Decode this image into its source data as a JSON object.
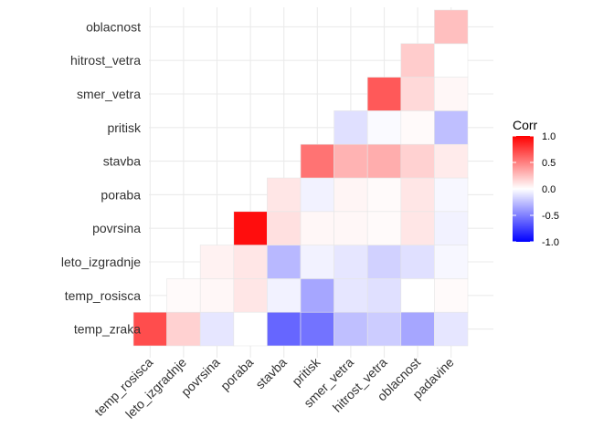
{
  "chart_data": {
    "type": "heatmap",
    "title": "",
    "xlabel": "",
    "ylabel": "",
    "x_categories": [
      "temp_rosisca",
      "leto_izgradnje",
      "povrsina",
      "poraba",
      "stavba",
      "pritisk",
      "smer_vetra",
      "hitrost_vetra",
      "oblacnost",
      "padavine"
    ],
    "y_categories": [
      "temp_zraka",
      "temp_rosisca",
      "leto_izgradnje",
      "povrsina",
      "poraba",
      "stavba",
      "pritisk",
      "smer_vetra",
      "hitrost_vetra",
      "oblacnost"
    ],
    "cells": [
      {
        "x": "temp_rosisca",
        "y": "temp_zraka",
        "value": 0.7
      },
      {
        "x": "leto_izgradnje",
        "y": "temp_zraka",
        "value": 0.18
      },
      {
        "x": "povrsina",
        "y": "temp_zraka",
        "value": -0.1
      },
      {
        "x": "poraba",
        "y": "temp_zraka",
        "value": 0.0
      },
      {
        "x": "stavba",
        "y": "temp_zraka",
        "value": -0.6
      },
      {
        "x": "pritisk",
        "y": "temp_zraka",
        "value": -0.55
      },
      {
        "x": "smer_vetra",
        "y": "temp_zraka",
        "value": -0.25
      },
      {
        "x": "hitrost_vetra",
        "y": "temp_zraka",
        "value": -0.2
      },
      {
        "x": "oblacnost",
        "y": "temp_zraka",
        "value": -0.35
      },
      {
        "x": "padavine",
        "y": "temp_zraka",
        "value": -0.1
      },
      {
        "x": "leto_izgradnje",
        "y": "temp_rosisca",
        "value": 0.02
      },
      {
        "x": "povrsina",
        "y": "temp_rosisca",
        "value": 0.03
      },
      {
        "x": "poraba",
        "y": "temp_rosisca",
        "value": 0.1
      },
      {
        "x": "stavba",
        "y": "temp_rosisca",
        "value": -0.05
      },
      {
        "x": "pritisk",
        "y": "temp_rosisca",
        "value": -0.35
      },
      {
        "x": "smer_vetra",
        "y": "temp_rosisca",
        "value": -0.1
      },
      {
        "x": "hitrost_vetra",
        "y": "temp_rosisca",
        "value": -0.12
      },
      {
        "x": "oblacnost",
        "y": "temp_rosisca",
        "value": 0.0
      },
      {
        "x": "padavine",
        "y": "temp_rosisca",
        "value": 0.02
      },
      {
        "x": "povrsina",
        "y": "leto_izgradnje",
        "value": 0.05
      },
      {
        "x": "poraba",
        "y": "leto_izgradnje",
        "value": 0.1
      },
      {
        "x": "stavba",
        "y": "leto_izgradnje",
        "value": -0.28
      },
      {
        "x": "pritisk",
        "y": "leto_izgradnje",
        "value": -0.05
      },
      {
        "x": "smer_vetra",
        "y": "leto_izgradnje",
        "value": -0.1
      },
      {
        "x": "hitrost_vetra",
        "y": "leto_izgradnje",
        "value": -0.18
      },
      {
        "x": "oblacnost",
        "y": "leto_izgradnje",
        "value": -0.12
      },
      {
        "x": "padavine",
        "y": "leto_izgradnje",
        "value": -0.03
      },
      {
        "x": "poraba",
        "y": "povrsina",
        "value": 0.95
      },
      {
        "x": "stavba",
        "y": "povrsina",
        "value": 0.12
      },
      {
        "x": "pritisk",
        "y": "povrsina",
        "value": 0.03
      },
      {
        "x": "smer_vetra",
        "y": "povrsina",
        "value": 0.03
      },
      {
        "x": "hitrost_vetra",
        "y": "povrsina",
        "value": 0.02
      },
      {
        "x": "oblacnost",
        "y": "povrsina",
        "value": 0.1
      },
      {
        "x": "padavine",
        "y": "povrsina",
        "value": -0.05
      },
      {
        "x": "stavba",
        "y": "poraba",
        "value": 0.1
      },
      {
        "x": "pritisk",
        "y": "poraba",
        "value": -0.05
      },
      {
        "x": "smer_vetra",
        "y": "poraba",
        "value": 0.04
      },
      {
        "x": "hitrost_vetra",
        "y": "poraba",
        "value": 0.02
      },
      {
        "x": "oblacnost",
        "y": "poraba",
        "value": 0.1
      },
      {
        "x": "padavine",
        "y": "poraba",
        "value": -0.03
      },
      {
        "x": "pritisk",
        "y": "stavba",
        "value": 0.55
      },
      {
        "x": "smer_vetra",
        "y": "stavba",
        "value": 0.3
      },
      {
        "x": "hitrost_vetra",
        "y": "stavba",
        "value": 0.32
      },
      {
        "x": "oblacnost",
        "y": "stavba",
        "value": 0.18
      },
      {
        "x": "padavine",
        "y": "stavba",
        "value": 0.08
      },
      {
        "x": "smer_vetra",
        "y": "pritisk",
        "value": -0.12
      },
      {
        "x": "hitrost_vetra",
        "y": "pritisk",
        "value": -0.02
      },
      {
        "x": "oblacnost",
        "y": "pritisk",
        "value": 0.02
      },
      {
        "x": "padavine",
        "y": "pritisk",
        "value": -0.25
      },
      {
        "x": "hitrost_vetra",
        "y": "smer_vetra",
        "value": 0.65
      },
      {
        "x": "oblacnost",
        "y": "smer_vetra",
        "value": 0.15
      },
      {
        "x": "padavine",
        "y": "smer_vetra",
        "value": 0.03
      },
      {
        "x": "oblacnost",
        "y": "hitrost_vetra",
        "value": 0.2
      },
      {
        "x": "padavine",
        "y": "hitrost_vetra",
        "value": 0.0
      },
      {
        "x": "padavine",
        "y": "oblacnost",
        "value": 0.25
      }
    ],
    "legend": {
      "title": "Corr",
      "position": "right",
      "ticks": [
        "1.0",
        "0.5",
        "0.0",
        "-0.5",
        "-1.0"
      ],
      "range": [
        -1,
        1
      ],
      "colors": {
        "low": "#0000FF",
        "mid": "#FFFFFF",
        "high": "#FF0000"
      }
    },
    "grid": true,
    "grid_color": "#EBEBEB"
  }
}
